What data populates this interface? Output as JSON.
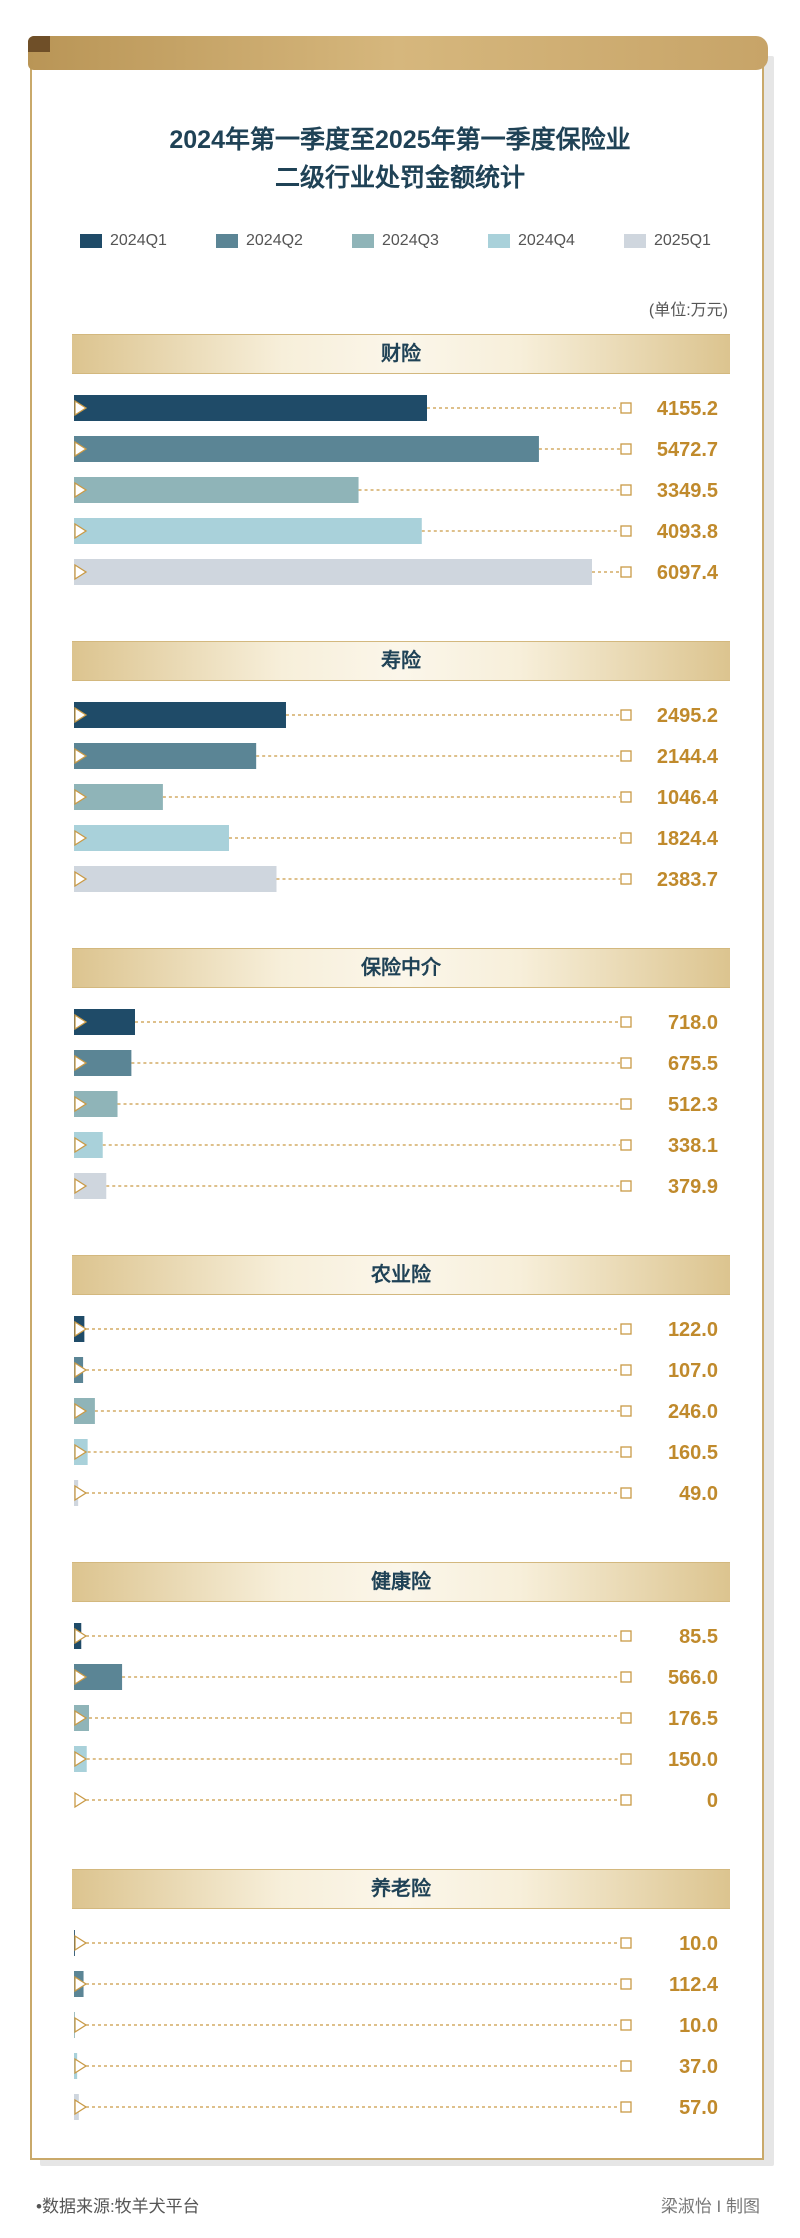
{
  "title_line1": "2024年第一季度至2025年第一季度保险业",
  "title_line2": "二级行业处罚金额统计",
  "unit": "(单位:万元)",
  "footer": {
    "source": "•数据来源:牧羊犬平台",
    "credit": "梁淑怡 I 制图"
  },
  "colors": {
    "2024Q1": "#1f4b68",
    "2024Q2": "#5b8595",
    "2024Q3": "#8fb4b8",
    "2024Q4": "#a9d1da",
    "2025Q1": "#cfd6de",
    "gold": "#c99a46",
    "value_text": "#c08a2c"
  },
  "chart_data": {
    "type": "bar",
    "orientation": "horizontal",
    "series_names": [
      "2024Q1",
      "2024Q2",
      "2024Q3",
      "2024Q4",
      "2025Q1"
    ],
    "value_max": 6097.4,
    "groups": [
      {
        "name": "财险",
        "values": [
          4155.2,
          5472.7,
          3349.5,
          4093.8,
          6097.4
        ],
        "labels": [
          "4155.2",
          "5472.7",
          "3349.5",
          "4093.8",
          "6097.4"
        ]
      },
      {
        "name": "寿险",
        "values": [
          2495.2,
          2144.4,
          1046.4,
          1824.4,
          2383.7
        ],
        "labels": [
          "2495.2",
          "2144.4",
          "1046.4",
          "1824.4",
          "2383.7"
        ]
      },
      {
        "name": "保险中介",
        "values": [
          718.0,
          675.5,
          512.3,
          338.1,
          379.9
        ],
        "labels": [
          "718.0",
          "675.5",
          "512.3",
          "338.1",
          "379.9"
        ]
      },
      {
        "name": "农业险",
        "values": [
          122.0,
          107.0,
          246.0,
          160.5,
          49.0
        ],
        "labels": [
          "122.0",
          "107.0",
          "246.0",
          "160.5",
          "49.0"
        ]
      },
      {
        "name": "健康险",
        "values": [
          85.5,
          566.0,
          176.5,
          150.0,
          0
        ],
        "labels": [
          "85.5",
          "566.0",
          "176.5",
          "150.0",
          "0"
        ]
      },
      {
        "name": "养老险",
        "values": [
          10.0,
          112.4,
          10.0,
          37.0,
          57.0
        ],
        "labels": [
          "10.0",
          "112.4",
          "10.0",
          "37.0",
          "57.0"
        ]
      }
    ]
  }
}
